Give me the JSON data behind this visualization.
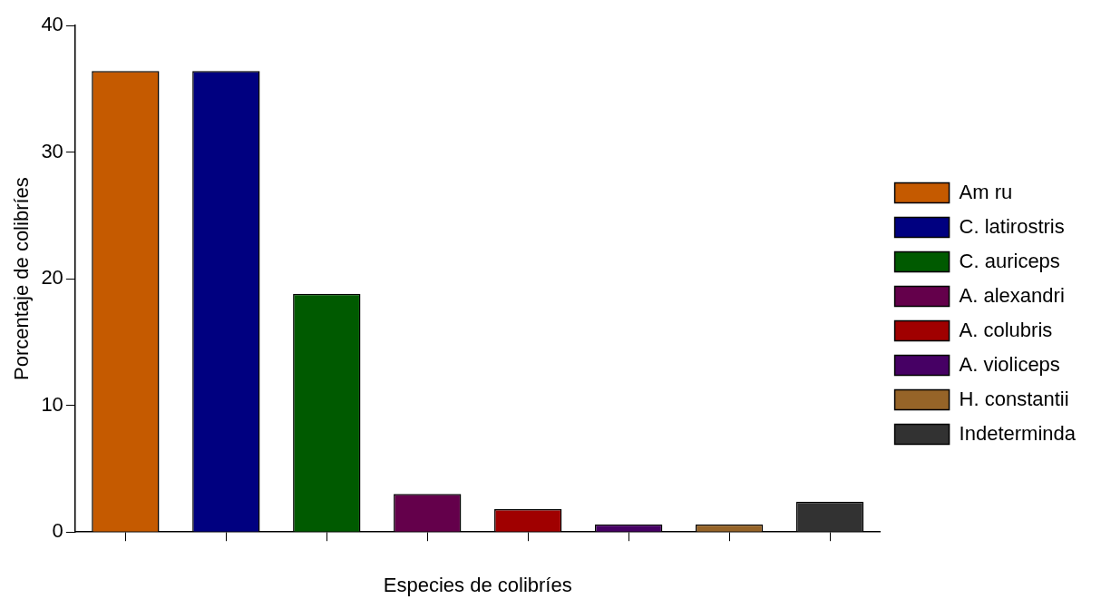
{
  "chart_data": {
    "type": "bar",
    "xlabel": "Especies de colibríes",
    "ylabel": "Porcentaje de colibríes",
    "categories": [
      null,
      null,
      null,
      null,
      null,
      null,
      null,
      null
    ],
    "series": [
      {
        "name": "Am ru",
        "color": "#c55a00",
        "values": [
          36.4,
          null,
          null,
          null,
          null,
          null,
          null,
          null
        ]
      },
      {
        "name": "C. latirostris",
        "color": "#000080",
        "values": [
          null,
          36.4,
          null,
          null,
          null,
          null,
          null,
          null
        ]
      },
      {
        "name": "C. auriceps",
        "color": "#005a00",
        "values": [
          null,
          null,
          18.8,
          null,
          null,
          null,
          null,
          null
        ]
      },
      {
        "name": "A. alexandri",
        "color": "#64004b",
        "values": [
          null,
          null,
          null,
          3.0,
          null,
          null,
          null,
          null
        ]
      },
      {
        "name": "A. colubris",
        "color": "#a00000",
        "values": [
          null,
          null,
          null,
          null,
          1.8,
          null,
          null,
          null
        ]
      },
      {
        "name": "A. violiceps",
        "color": "#460064",
        "values": [
          null,
          null,
          null,
          null,
          null,
          0.6,
          null,
          null
        ]
      },
      {
        "name": "H. constantii",
        "color": "#966428",
        "values": [
          null,
          null,
          null,
          null,
          null,
          null,
          0.6,
          null
        ]
      },
      {
        "name": "Indeterminda",
        "color": "#323232",
        "values": [
          null,
          null,
          null,
          null,
          null,
          null,
          null,
          2.4
        ]
      }
    ],
    "ylim": [
      0,
      40
    ],
    "yticks": [
      0,
      10,
      20,
      30,
      40
    ],
    "grid": false,
    "legend": "right"
  }
}
